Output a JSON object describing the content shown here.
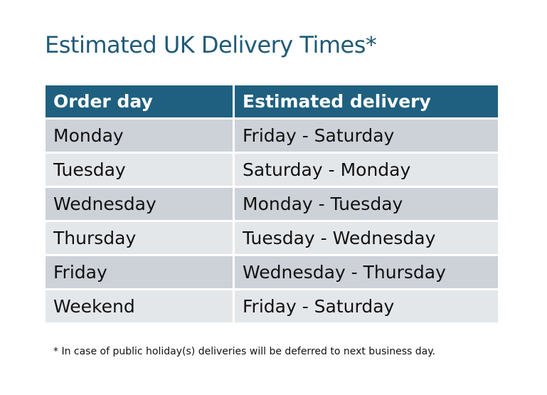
{
  "title": "Estimated UK Delivery Times*",
  "table": {
    "headers": [
      "Order day",
      "Estimated delivery"
    ],
    "rows": [
      [
        "Monday",
        "Friday - Saturday"
      ],
      [
        "Tuesday",
        "Saturday - Monday"
      ],
      [
        "Wednesday",
        "Monday - Tuesday"
      ],
      [
        "Thursday",
        "Tuesday - Wednesday"
      ],
      [
        "Friday",
        "Wednesday - Thursday"
      ],
      [
        "Weekend",
        "Friday - Saturday"
      ]
    ]
  },
  "footnote": "* In case of public holiday(s) deliveries will be deferred to next business day.",
  "colors": {
    "header": "#1f6080",
    "title": "#1f5a78",
    "row_dark": "#cdd1d8",
    "row_light": "#e4e7ea"
  }
}
